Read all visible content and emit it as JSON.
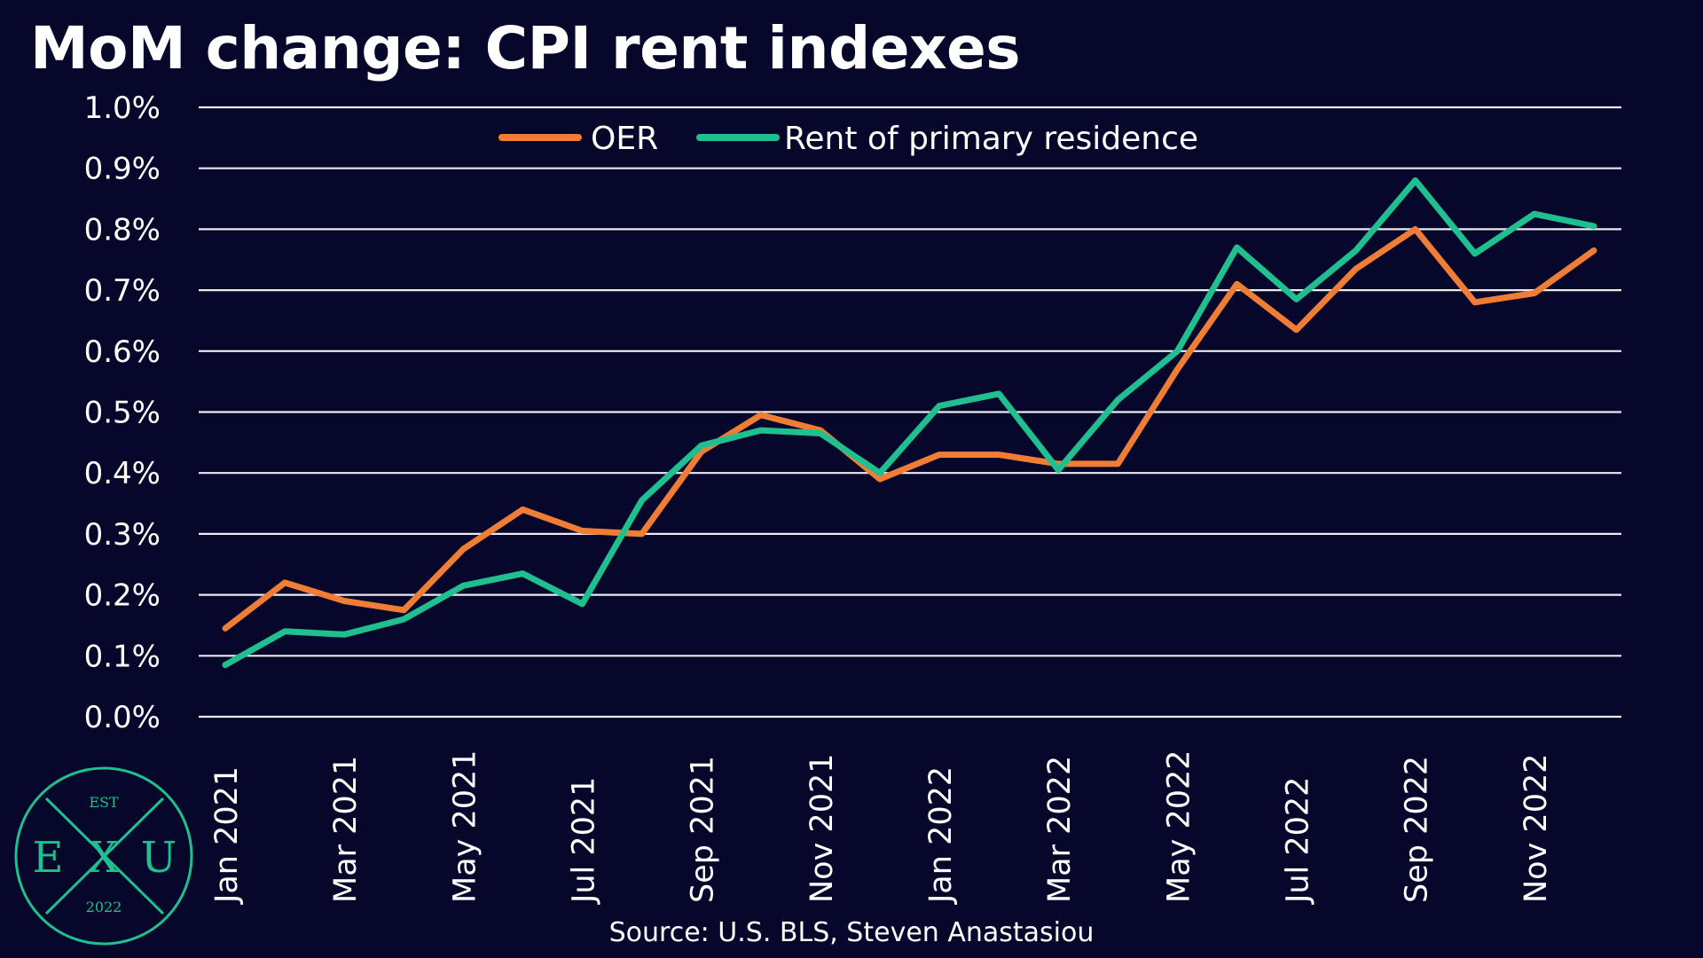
{
  "title": "MoM change: CPI rent indexes",
  "source": "Source: U.S. BLS, Steven Anastasiou",
  "logo": {
    "text_top": "EST",
    "letter_left": "E",
    "letter_middle": "X",
    "letter_right": "U",
    "text_bottom": "2022"
  },
  "colors": {
    "background": "#06072a",
    "oer": "#ef7d35",
    "rent": "#1fbf8f",
    "grid": "#ffffff",
    "logo": "#1fbf8f"
  },
  "chart_data": {
    "type": "line",
    "title": "MoM change: CPI rent indexes",
    "xlabel": "",
    "ylabel": "",
    "ylim": [
      0,
      1.0
    ],
    "grid": true,
    "legend_position": "top-center",
    "y_ticks": [
      "1.0%",
      "0.9%",
      "0.8%",
      "0.7%",
      "0.6%",
      "0.5%",
      "0.4%",
      "0.3%",
      "0.2%",
      "0.1%",
      "0.0%"
    ],
    "x_tick_labels": [
      "Jan 2021",
      "Mar 2021",
      "May 2021",
      "Jul 2021",
      "Sep 2021",
      "Nov 2021",
      "Jan 2022",
      "Mar 2022",
      "May 2022",
      "Jul 2022",
      "Sep 2022",
      "Nov 2022"
    ],
    "categories": [
      "Jan 2021",
      "Feb 2021",
      "Mar 2021",
      "Apr 2021",
      "May 2021",
      "Jun 2021",
      "Jul 2021",
      "Aug 2021",
      "Sep 2021",
      "Oct 2021",
      "Nov 2021",
      "Dec 2021",
      "Jan 2022",
      "Feb 2022",
      "Mar 2022",
      "Apr 2022",
      "May 2022",
      "Jun 2022",
      "Jul 2022",
      "Aug 2022",
      "Sep 2022",
      "Oct 2022",
      "Nov 2022",
      "Dec 2022"
    ],
    "series": [
      {
        "name": "OER",
        "color": "#ef7d35",
        "values": [
          0.145,
          0.22,
          0.19,
          0.175,
          0.275,
          0.34,
          0.305,
          0.3,
          0.435,
          0.495,
          0.47,
          0.39,
          0.43,
          0.43,
          0.415,
          0.415,
          0.57,
          0.71,
          0.635,
          0.735,
          0.8,
          0.68,
          0.695,
          0.765
        ]
      },
      {
        "name": "Rent of primary residence",
        "color": "#1fbf8f",
        "values": [
          0.085,
          0.14,
          0.135,
          0.16,
          0.215,
          0.235,
          0.185,
          0.355,
          0.445,
          0.47,
          0.465,
          0.4,
          0.51,
          0.53,
          0.405,
          0.52,
          0.6,
          0.77,
          0.685,
          0.765,
          0.88,
          0.76,
          0.825,
          0.805
        ]
      }
    ]
  }
}
